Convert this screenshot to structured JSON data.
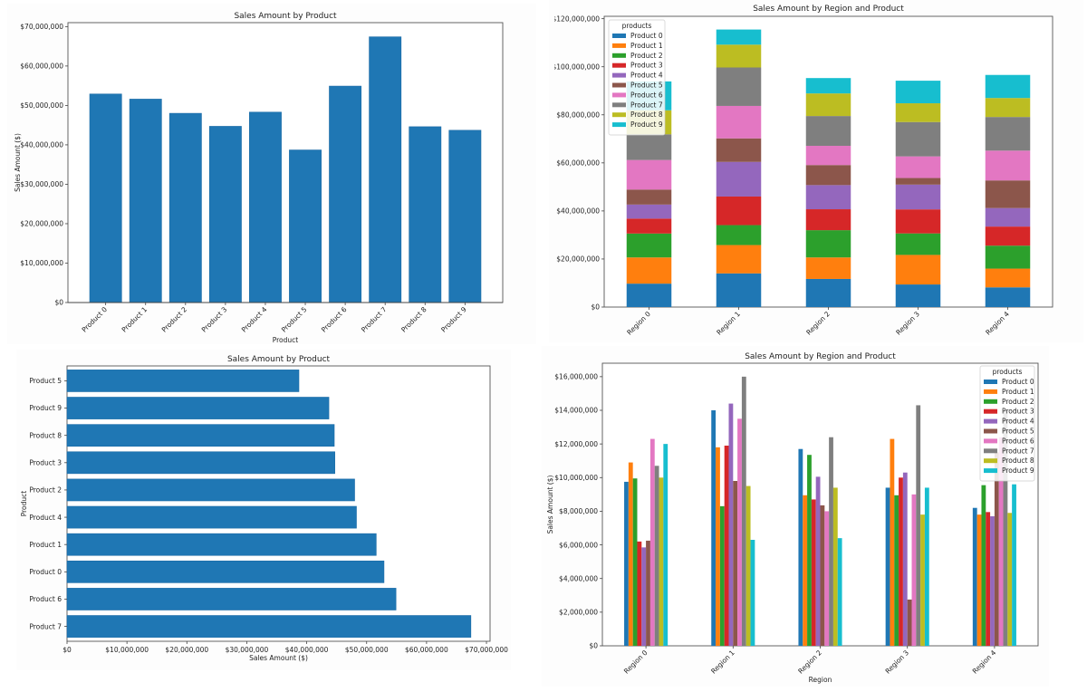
{
  "colors": {
    "bar": "#1f77b4",
    "palette": [
      "#1f77b4",
      "#ff7f0e",
      "#2ca02c",
      "#d62728",
      "#9467bd",
      "#8c564b",
      "#e377c2",
      "#7f7f7f",
      "#bcbd22",
      "#17becf"
    ]
  },
  "chart_data": [
    {
      "type": "bar",
      "title": "Sales Amount by Product",
      "xlabel": "Product",
      "ylabel": "Sales Amount ($)",
      "categories": [
        "Product 0",
        "Product 1",
        "Product 2",
        "Product 3",
        "Product 4",
        "Product 5",
        "Product 6",
        "Product 7",
        "Product 8",
        "Product 9"
      ],
      "values": [
        52900000,
        51600000,
        48000000,
        44700000,
        48300000,
        38700000,
        54900000,
        67400000,
        44600000,
        43700000
      ],
      "ylim": [
        0,
        71000000
      ],
      "yticks": [
        0,
        10000000,
        20000000,
        30000000,
        40000000,
        50000000,
        60000000,
        70000000
      ],
      "ytick_labels": [
        "$0",
        "$10,000,000",
        "$20,000,000",
        "$30,000,000",
        "$40,000,000",
        "$50,000,000",
        "$60,000,000",
        "$70,000,000"
      ],
      "grid": false
    },
    {
      "type": "bar",
      "stacked": true,
      "title": "Sales Amount by Region and Product",
      "categories": [
        "Region 0",
        "Region 1",
        "Region 2",
        "Region 3",
        "Region 4"
      ],
      "legend_title": "products",
      "legend_position": "top-left",
      "ylim": [
        0,
        121000000
      ],
      "yticks": [
        0,
        20000000,
        40000000,
        60000000,
        80000000,
        100000000,
        120000000
      ],
      "ytick_labels": [
        "$0",
        "$20,000,000",
        "$40,000,000",
        "$60,000,000",
        "$80,000,000",
        "$100,000,000",
        "$120,000,000"
      ],
      "grid": false,
      "series": [
        {
          "name": "Product 0",
          "values": [
            9750000,
            14000000,
            11700000,
            9400000,
            8200000
          ]
        },
        {
          "name": "Product 1",
          "values": [
            10900000,
            11800000,
            8950000,
            12300000,
            7800000
          ]
        },
        {
          "name": "Product 2",
          "values": [
            9950000,
            8300000,
            11350000,
            8950000,
            9550000
          ]
        },
        {
          "name": "Product 3",
          "values": [
            6200000,
            11900000,
            8700000,
            10000000,
            7950000
          ]
        },
        {
          "name": "Product 4",
          "values": [
            5850000,
            14400000,
            10050000,
            10300000,
            7700000
          ]
        },
        {
          "name": "Product 5",
          "values": [
            6250000,
            9800000,
            8350000,
            2750000,
            11500000
          ]
        },
        {
          "name": "Product 6",
          "values": [
            12300000,
            13500000,
            8000000,
            9000000,
            12400000
          ]
        },
        {
          "name": "Product 7",
          "values": [
            10700000,
            16000000,
            12400000,
            14300000,
            14000000
          ]
        },
        {
          "name": "Product 8",
          "values": [
            10000000,
            9500000,
            9400000,
            7800000,
            7900000
          ]
        },
        {
          "name": "Product 9",
          "values": [
            12000000,
            6300000,
            6400000,
            9400000,
            9600000
          ]
        }
      ]
    },
    {
      "type": "bar",
      "orientation": "horizontal",
      "title": "Sales Amount by Product",
      "xlabel": "Sales Amount ($)",
      "ylabel": "Product",
      "categories": [
        "Product 7",
        "Product 6",
        "Product 0",
        "Product 1",
        "Product 4",
        "Product 2",
        "Product 3",
        "Product 8",
        "Product 9",
        "Product 5"
      ],
      "values": [
        67400000,
        54900000,
        52900000,
        51600000,
        48300000,
        48000000,
        44700000,
        44600000,
        43700000,
        38700000
      ],
      "xlim": [
        0,
        70600000
      ],
      "xticks": [
        0,
        10000000,
        20000000,
        30000000,
        40000000,
        50000000,
        60000000,
        70000000
      ],
      "xtick_labels": [
        "$0",
        "$10,000,000",
        "$20,000,000",
        "$30,000,000",
        "$40,000,000",
        "$50,000,000",
        "$60,000,000",
        "$70,000,000"
      ],
      "grid": false
    },
    {
      "type": "bar",
      "grouped": true,
      "title": "Sales Amount by Region and Product",
      "xlabel": "Region",
      "ylabel": "Sales Amount ($)",
      "categories": [
        "Region 0",
        "Region 1",
        "Region 2",
        "Region 3",
        "Region 4"
      ],
      "legend_title": "products",
      "legend_position": "top-right",
      "ylim": [
        0,
        16800000
      ],
      "yticks": [
        0,
        2000000,
        4000000,
        6000000,
        8000000,
        10000000,
        12000000,
        14000000,
        16000000
      ],
      "ytick_labels": [
        "$0",
        "$2,000,000",
        "$4,000,000",
        "$6,000,000",
        "$8,000,000",
        "$10,000,000",
        "$12,000,000",
        "$14,000,000",
        "$16,000,000"
      ],
      "grid": false,
      "series": [
        {
          "name": "Product 0",
          "values": [
            9750000,
            14000000,
            11700000,
            9400000,
            8200000
          ]
        },
        {
          "name": "Product 1",
          "values": [
            10900000,
            11800000,
            8950000,
            12300000,
            7800000
          ]
        },
        {
          "name": "Product 2",
          "values": [
            9950000,
            8300000,
            11350000,
            8950000,
            9550000
          ]
        },
        {
          "name": "Product 3",
          "values": [
            6200000,
            11900000,
            8700000,
            10000000,
            7950000
          ]
        },
        {
          "name": "Product 4",
          "values": [
            5850000,
            14400000,
            10050000,
            10300000,
            7700000
          ]
        },
        {
          "name": "Product 5",
          "values": [
            6250000,
            9800000,
            8350000,
            2750000,
            11500000
          ]
        },
        {
          "name": "Product 6",
          "values": [
            12300000,
            13500000,
            8000000,
            9000000,
            12400000
          ]
        },
        {
          "name": "Product 7",
          "values": [
            10700000,
            16000000,
            12400000,
            14300000,
            14000000
          ]
        },
        {
          "name": "Product 8",
          "values": [
            10000000,
            9500000,
            9400000,
            7800000,
            7900000
          ]
        },
        {
          "name": "Product 9",
          "values": [
            12000000,
            6300000,
            6400000,
            9400000,
            9600000
          ]
        }
      ]
    }
  ]
}
